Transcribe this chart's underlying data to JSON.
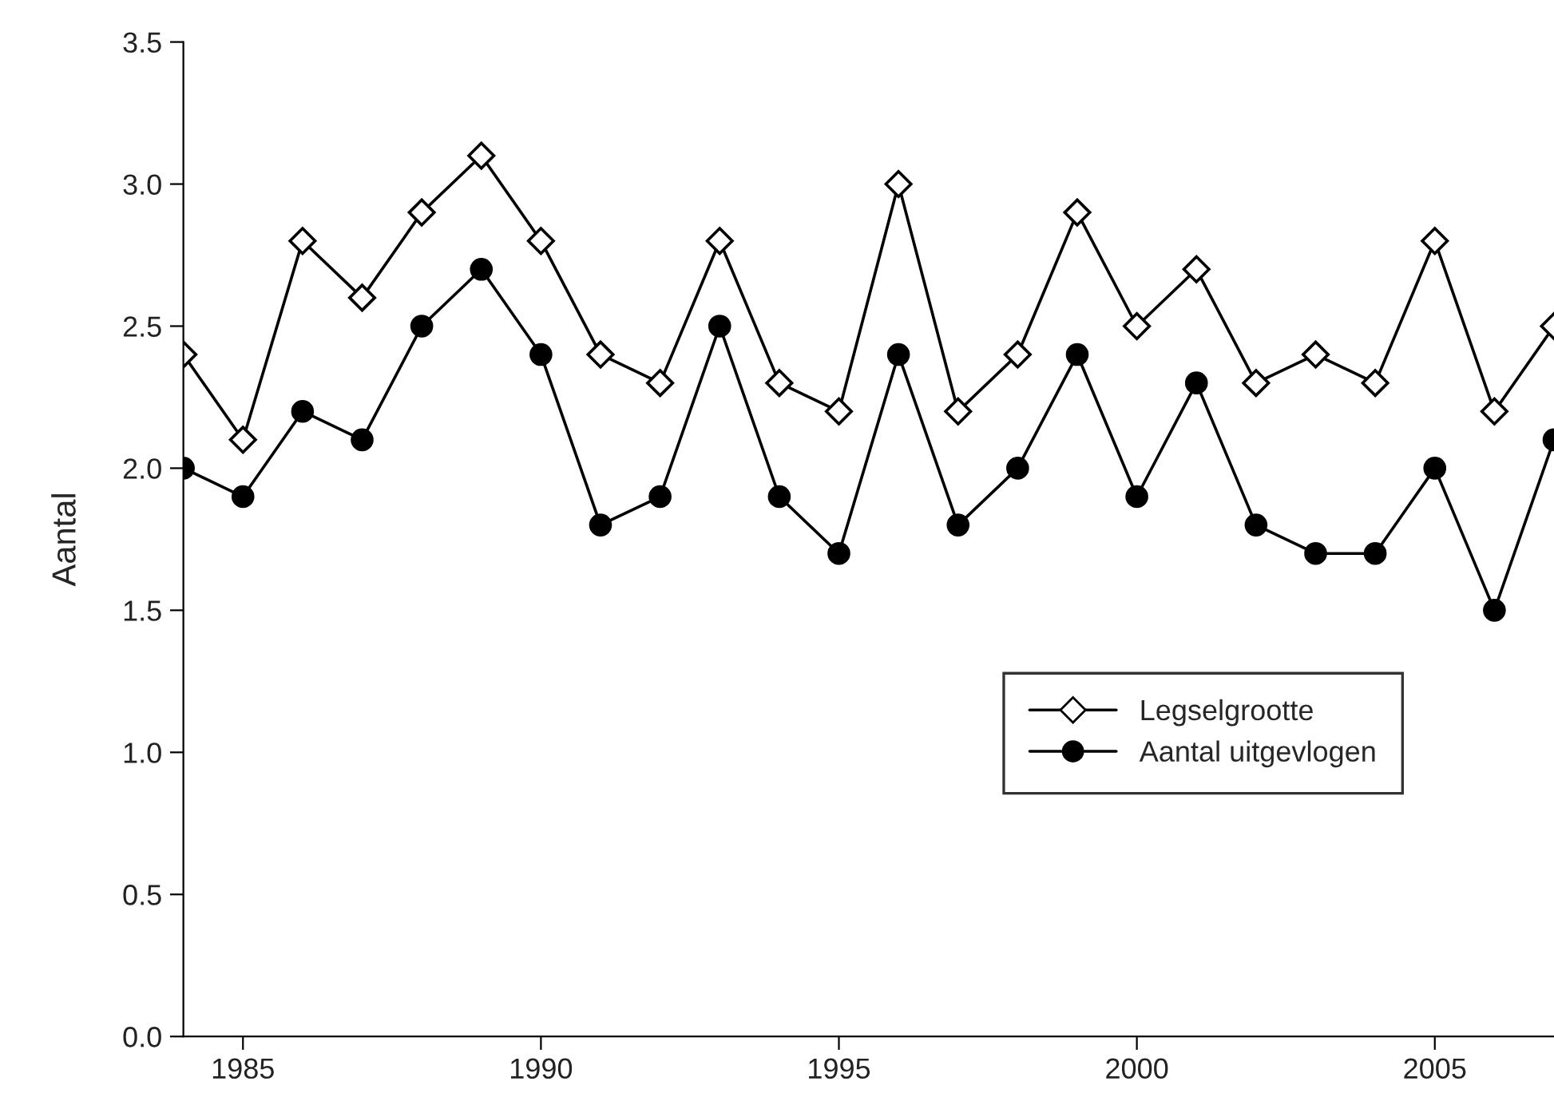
{
  "chart_data": {
    "type": "line",
    "ylabel": "Aantal",
    "x": [
      1984,
      1985,
      1986,
      1987,
      1988,
      1989,
      1990,
      1991,
      1992,
      1993,
      1994,
      1995,
      1996,
      1997,
      1998,
      1999,
      2000,
      2001,
      2002,
      2003,
      2004,
      2005,
      2006,
      2007
    ],
    "series": [
      {
        "name": "Legselgrootte",
        "color": "#000000",
        "marker": "diamond",
        "values": [
          2.4,
          2.1,
          2.8,
          2.6,
          2.9,
          3.1,
          2.8,
          2.4,
          2.3,
          2.8,
          2.3,
          2.2,
          3.0,
          2.2,
          2.4,
          2.9,
          2.5,
          2.7,
          2.3,
          2.4,
          2.3,
          2.8,
          2.2,
          2.5
        ]
      },
      {
        "name": "Aantal uitgevlogen",
        "color": "#000000",
        "marker": "circle",
        "values": [
          2.0,
          1.9,
          2.2,
          2.1,
          2.5,
          2.7,
          2.4,
          1.8,
          1.9,
          2.5,
          1.9,
          1.7,
          2.4,
          1.8,
          2.0,
          2.4,
          1.9,
          2.3,
          1.8,
          1.7,
          1.7,
          2.0,
          1.5,
          2.1
        ]
      }
    ],
    "xlim": [
      1984,
      2007
    ],
    "xticks": [
      1985,
      1990,
      1995,
      2000,
      2005
    ],
    "ylim": [
      0,
      3.5
    ],
    "yticks": [
      {
        "value": 0,
        "label": "0.0"
      },
      {
        "value": 0.5,
        "label": "0.5"
      },
      {
        "value": 1,
        "label": "1.0"
      },
      {
        "value": 1.5,
        "label": "1.5"
      },
      {
        "value": 2,
        "label": "2.0"
      },
      {
        "value": 2.5,
        "label": "2.5"
      },
      {
        "value": 3,
        "label": "3.0"
      },
      {
        "value": 3.5,
        "label": "3.5"
      }
    ],
    "grid": false,
    "legend": "lower right",
    "line_style": "solid"
  }
}
